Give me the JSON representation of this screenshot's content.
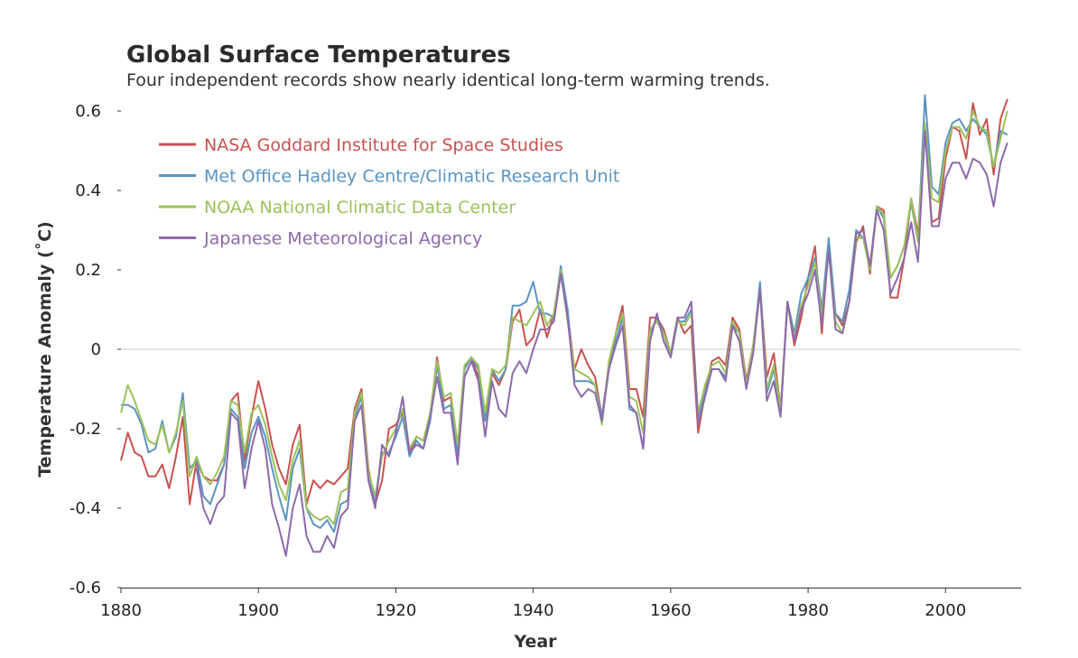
{
  "chart_data": {
    "type": "line",
    "title": "Global Surface Temperatures",
    "subtitle": "Four independent records show nearly identical long-term warming trends.",
    "xlabel": "Year",
    "ylabel": "Temperature Anomaly (˚C)",
    "xlim": [
      1880,
      2011
    ],
    "ylim": [
      -0.6,
      0.6
    ],
    "xticks": [
      1880,
      1900,
      1920,
      1940,
      1960,
      1980,
      2000
    ],
    "yticks": [
      -0.6,
      -0.4,
      -0.2,
      0,
      0.2,
      0.4,
      0.6
    ],
    "ytick_labels": [
      "-0.6",
      "-0.4",
      "-0.2",
      "0",
      "0.2",
      "0.4",
      "0.6"
    ],
    "zero_line": true,
    "grid": false,
    "legend_position": "top-left",
    "x_start": 1880,
    "series": [
      {
        "name": "NASA Goddard Institute for Space Studies",
        "color": "#c9524f",
        "values": [
          -0.28,
          -0.21,
          -0.26,
          -0.27,
          -0.32,
          -0.32,
          -0.29,
          -0.35,
          -0.27,
          -0.17,
          -0.39,
          -0.28,
          -0.32,
          -0.33,
          -0.33,
          -0.29,
          -0.13,
          -0.11,
          -0.28,
          -0.17,
          -0.08,
          -0.15,
          -0.24,
          -0.3,
          -0.34,
          -0.24,
          -0.19,
          -0.39,
          -0.33,
          -0.35,
          -0.33,
          -0.34,
          -0.32,
          -0.3,
          -0.15,
          -0.1,
          -0.3,
          -0.39,
          -0.33,
          -0.2,
          -0.19,
          -0.16,
          -0.26,
          -0.22,
          -0.23,
          -0.17,
          -0.02,
          -0.13,
          -0.12,
          -0.27,
          -0.05,
          -0.02,
          -0.07,
          -0.18,
          -0.06,
          -0.09,
          -0.05,
          0.07,
          0.1,
          0.01,
          0.03,
          0.1,
          0.03,
          0.09,
          0.2,
          0.09,
          -0.05,
          0.0,
          -0.04,
          -0.07,
          -0.17,
          -0.04,
          0.04,
          0.11,
          -0.1,
          -0.1,
          -0.17,
          0.08,
          0.08,
          0.05,
          -0.01,
          0.08,
          0.04,
          0.06,
          -0.21,
          -0.11,
          -0.03,
          -0.02,
          -0.04,
          0.08,
          0.05,
          -0.08,
          0.01,
          0.16,
          -0.07,
          -0.01,
          -0.15,
          0.12,
          0.01,
          0.08,
          0.18,
          0.26,
          0.04,
          0.27,
          0.09,
          0.06,
          0.12,
          0.27,
          0.31,
          0.19,
          0.36,
          0.35,
          0.13,
          0.13,
          0.23,
          0.38,
          0.29,
          0.56,
          0.32,
          0.33,
          0.48,
          0.56,
          0.55,
          0.48,
          0.62,
          0.54,
          0.58,
          0.44,
          0.58,
          0.63
        ]
      },
      {
        "name": "Met Office Hadley Centre/Climatic Research Unit",
        "color": "#5b94c2",
        "values": [
          -0.14,
          -0.14,
          -0.15,
          -0.19,
          -0.26,
          -0.25,
          -0.18,
          -0.26,
          -0.22,
          -0.11,
          -0.3,
          -0.28,
          -0.37,
          -0.39,
          -0.34,
          -0.29,
          -0.15,
          -0.17,
          -0.3,
          -0.21,
          -0.17,
          -0.22,
          -0.3,
          -0.37,
          -0.43,
          -0.3,
          -0.25,
          -0.4,
          -0.44,
          -0.45,
          -0.43,
          -0.46,
          -0.39,
          -0.38,
          -0.17,
          -0.12,
          -0.32,
          -0.39,
          -0.26,
          -0.26,
          -0.22,
          -0.17,
          -0.27,
          -0.23,
          -0.25,
          -0.18,
          -0.04,
          -0.15,
          -0.14,
          -0.26,
          -0.05,
          -0.02,
          -0.05,
          -0.18,
          -0.05,
          -0.08,
          -0.05,
          0.11,
          0.11,
          0.12,
          0.17,
          0.09,
          0.09,
          0.08,
          0.21,
          0.1,
          -0.08,
          -0.08,
          -0.08,
          -0.09,
          -0.17,
          -0.05,
          0.02,
          0.08,
          -0.15,
          -0.16,
          -0.25,
          0.04,
          0.08,
          0.04,
          -0.02,
          0.07,
          0.07,
          0.1,
          -0.17,
          -0.11,
          -0.05,
          -0.05,
          -0.07,
          0.06,
          0.04,
          -0.09,
          0.0,
          0.17,
          -0.11,
          -0.05,
          -0.16,
          0.12,
          0.04,
          0.14,
          0.18,
          0.23,
          0.1,
          0.28,
          0.09,
          0.07,
          0.15,
          0.3,
          0.28,
          0.21,
          0.36,
          0.33,
          0.18,
          0.21,
          0.26,
          0.37,
          0.27,
          0.64,
          0.41,
          0.39,
          0.52,
          0.57,
          0.58,
          0.55,
          0.58,
          0.56,
          0.54,
          0.46,
          0.55,
          0.54
        ]
      },
      {
        "name": "NOAA National Climatic Data Center",
        "color": "#9bc25a",
        "values": [
          -0.16,
          -0.09,
          -0.13,
          -0.18,
          -0.23,
          -0.24,
          -0.19,
          -0.26,
          -0.21,
          -0.13,
          -0.32,
          -0.27,
          -0.32,
          -0.34,
          -0.31,
          -0.27,
          -0.13,
          -0.14,
          -0.26,
          -0.16,
          -0.14,
          -0.19,
          -0.27,
          -0.34,
          -0.38,
          -0.28,
          -0.23,
          -0.4,
          -0.42,
          -0.43,
          -0.42,
          -0.44,
          -0.36,
          -0.35,
          -0.16,
          -0.11,
          -0.31,
          -0.37,
          -0.27,
          -0.23,
          -0.2,
          -0.15,
          -0.25,
          -0.22,
          -0.23,
          -0.16,
          -0.03,
          -0.12,
          -0.11,
          -0.24,
          -0.04,
          -0.02,
          -0.04,
          -0.16,
          -0.05,
          -0.06,
          -0.04,
          0.08,
          0.07,
          0.06,
          0.09,
          0.12,
          0.06,
          0.09,
          0.2,
          0.07,
          -0.05,
          -0.06,
          -0.07,
          -0.09,
          -0.19,
          -0.03,
          0.04,
          0.09,
          -0.12,
          -0.13,
          -0.21,
          0.05,
          0.07,
          0.04,
          -0.01,
          0.07,
          0.06,
          0.09,
          -0.16,
          -0.09,
          -0.04,
          -0.03,
          -0.06,
          0.07,
          0.04,
          -0.09,
          0.01,
          0.15,
          -0.1,
          -0.04,
          -0.15,
          0.11,
          0.03,
          0.11,
          0.16,
          0.22,
          0.08,
          0.25,
          0.07,
          0.04,
          0.12,
          0.28,
          0.28,
          0.2,
          0.36,
          0.34,
          0.18,
          0.21,
          0.26,
          0.38,
          0.27,
          0.57,
          0.38,
          0.37,
          0.5,
          0.56,
          0.56,
          0.53,
          0.6,
          0.56,
          0.55,
          0.46,
          0.53,
          0.6
        ]
      },
      {
        "name": "Japanese Meteorological Agency",
        "color": "#8d6aab",
        "values": [
          null,
          null,
          null,
          null,
          null,
          null,
          null,
          null,
          null,
          null,
          null,
          -0.3,
          -0.4,
          -0.44,
          -0.39,
          -0.37,
          -0.16,
          -0.18,
          -0.35,
          -0.25,
          -0.18,
          -0.25,
          -0.39,
          -0.45,
          -0.52,
          -0.4,
          -0.34,
          -0.47,
          -0.51,
          -0.51,
          -0.47,
          -0.5,
          -0.42,
          -0.4,
          -0.18,
          -0.14,
          -0.33,
          -0.4,
          -0.24,
          -0.27,
          -0.21,
          -0.12,
          -0.26,
          -0.24,
          -0.25,
          -0.17,
          -0.07,
          -0.16,
          -0.16,
          -0.29,
          -0.07,
          -0.03,
          -0.08,
          -0.22,
          -0.08,
          -0.15,
          -0.17,
          -0.06,
          -0.03,
          -0.06,
          0.0,
          0.05,
          0.05,
          0.07,
          0.19,
          0.08,
          -0.09,
          -0.12,
          -0.1,
          -0.11,
          -0.18,
          -0.05,
          0.01,
          0.06,
          -0.14,
          -0.16,
          -0.25,
          0.02,
          0.09,
          0.02,
          -0.02,
          0.08,
          0.08,
          0.12,
          -0.19,
          -0.12,
          -0.05,
          -0.05,
          -0.08,
          0.06,
          0.02,
          -0.1,
          -0.01,
          0.15,
          -0.13,
          -0.08,
          -0.17,
          0.12,
          0.02,
          0.1,
          0.14,
          0.2,
          0.06,
          0.25,
          0.05,
          0.04,
          0.12,
          0.29,
          0.3,
          0.21,
          0.35,
          0.3,
          0.14,
          0.18,
          0.23,
          0.32,
          0.22,
          0.55,
          0.31,
          0.31,
          0.43,
          0.47,
          0.47,
          0.43,
          0.48,
          0.47,
          0.44,
          0.36,
          0.47,
          0.52
        ]
      }
    ]
  }
}
